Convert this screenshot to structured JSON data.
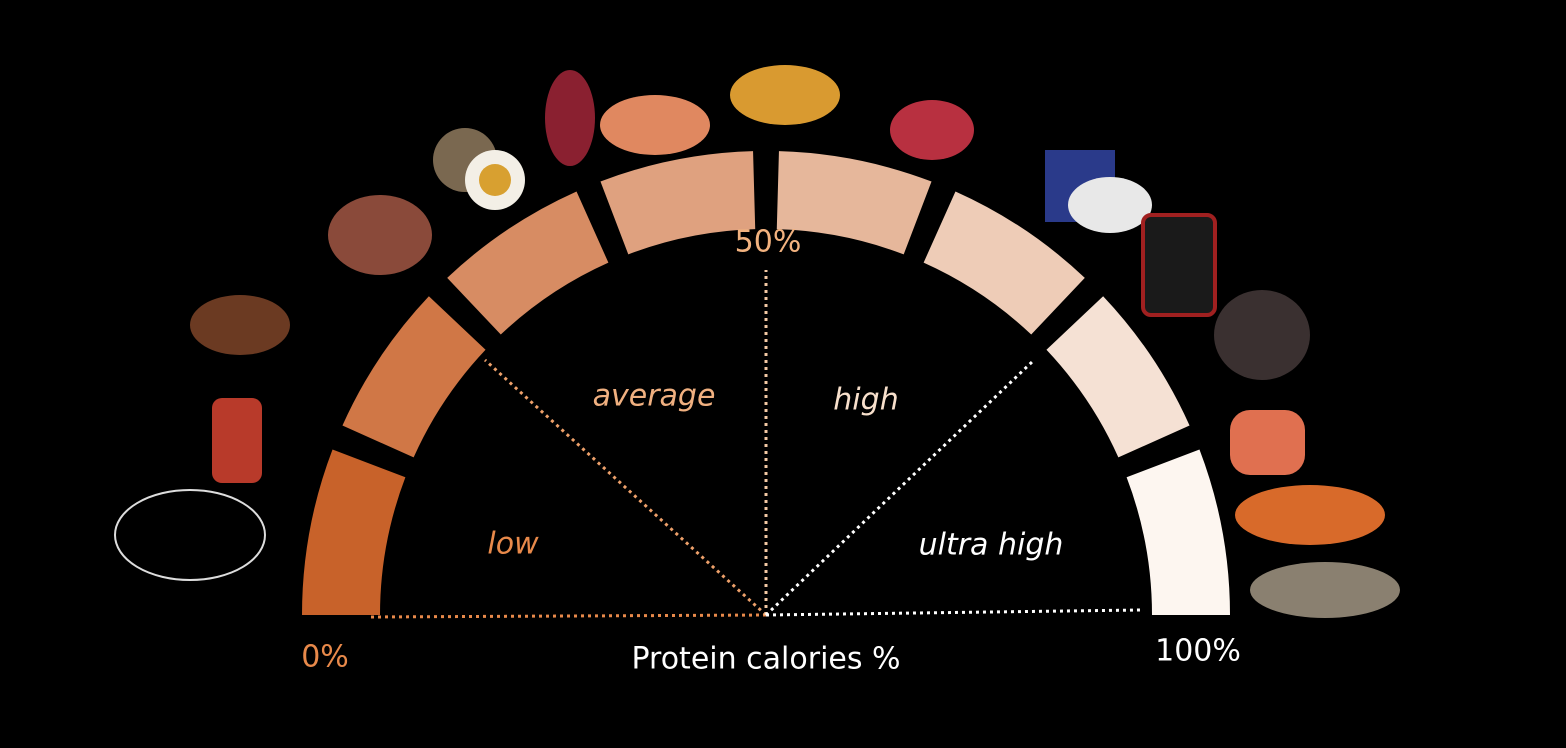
{
  "scale": {
    "start": "0%",
    "middle": "50%",
    "end": "100%"
  },
  "axis_label": "Protein calories %",
  "zones": [
    "low",
    "average",
    "high",
    "ultra high"
  ]
}
